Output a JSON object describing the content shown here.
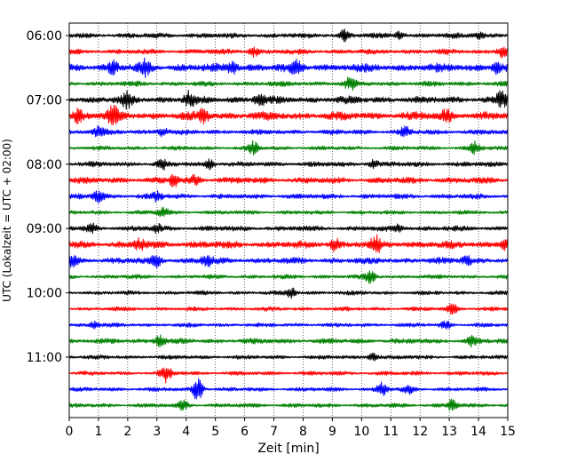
{
  "chart_data": {
    "type": "line",
    "title": "",
    "xlabel": "Zeit  [min]",
    "ylabel": "UTC (Lokalzeit = UTC + 02:00)",
    "xlim": [
      0,
      15
    ],
    "x_ticks": [
      0,
      1,
      2,
      3,
      4,
      5,
      6,
      7,
      8,
      9,
      10,
      11,
      12,
      13,
      14,
      15
    ],
    "x_grid": true,
    "grid_style": "dotted",
    "y_ticks": [
      {
        "label": "06:00",
        "trace": 0
      },
      {
        "label": "07:00",
        "trace": 4
      },
      {
        "label": "08:00",
        "trace": 8
      },
      {
        "label": "09:00",
        "trace": 12
      },
      {
        "label": "10:00",
        "trace": 16
      },
      {
        "label": "11:00",
        "trace": 20
      }
    ],
    "color_cycle": [
      "#000000",
      "#ff0000",
      "#0000ff",
      "#008000"
    ],
    "traces": [
      {
        "start": "06:00",
        "color": "#000000",
        "amplitude": 2.5,
        "events": [
          {
            "t": 9.4,
            "a": 5
          },
          {
            "t": 11.3,
            "a": 4
          },
          {
            "t": 14.0,
            "a": 4
          }
        ]
      },
      {
        "start": "06:15",
        "color": "#ff0000",
        "amplitude": 2.5,
        "events": [
          {
            "t": 6.3,
            "a": 5
          },
          {
            "t": 14.8,
            "a": 6
          }
        ]
      },
      {
        "start": "06:30",
        "color": "#0000ff",
        "amplitude": 4,
        "events": [
          {
            "t": 1.5,
            "a": 6
          },
          {
            "t": 2.6,
            "a": 7
          },
          {
            "t": 5.6,
            "a": 6
          },
          {
            "t": 7.8,
            "a": 6
          },
          {
            "t": 14.6,
            "a": 6
          }
        ]
      },
      {
        "start": "06:45",
        "color": "#008000",
        "amplitude": 2.5,
        "events": [
          {
            "t": 9.6,
            "a": 6
          }
        ]
      },
      {
        "start": "07:00",
        "color": "#000000",
        "amplitude": 3.5,
        "events": [
          {
            "t": 2.0,
            "a": 7
          },
          {
            "t": 4.1,
            "a": 8
          },
          {
            "t": 6.5,
            "a": 6
          },
          {
            "t": 14.8,
            "a": 8
          }
        ]
      },
      {
        "start": "07:15",
        "color": "#ff0000",
        "amplitude": 4,
        "events": [
          {
            "t": 0.3,
            "a": 6
          },
          {
            "t": 1.5,
            "a": 9
          },
          {
            "t": 4.6,
            "a": 8
          },
          {
            "t": 12.9,
            "a": 6
          }
        ]
      },
      {
        "start": "07:30",
        "color": "#0000ff",
        "amplitude": 2.5,
        "events": [
          {
            "t": 1.0,
            "a": 5
          },
          {
            "t": 3.2,
            "a": 5
          },
          {
            "t": 11.5,
            "a": 4
          }
        ]
      },
      {
        "start": "07:45",
        "color": "#008000",
        "amplitude": 2,
        "events": [
          {
            "t": 6.3,
            "a": 6
          },
          {
            "t": 13.9,
            "a": 6
          }
        ]
      },
      {
        "start": "08:00",
        "color": "#000000",
        "amplitude": 2.5,
        "events": [
          {
            "t": 3.2,
            "a": 4
          },
          {
            "t": 4.8,
            "a": 5
          },
          {
            "t": 10.4,
            "a": 4
          }
        ]
      },
      {
        "start": "08:15",
        "color": "#ff0000",
        "amplitude": 3,
        "events": [
          {
            "t": 3.6,
            "a": 6
          },
          {
            "t": 4.3,
            "a": 4
          }
        ]
      },
      {
        "start": "08:30",
        "color": "#0000ff",
        "amplitude": 2.5,
        "events": [
          {
            "t": 1.0,
            "a": 6
          },
          {
            "t": 3.0,
            "a": 4
          }
        ]
      },
      {
        "start": "08:45",
        "color": "#008000",
        "amplitude": 2,
        "events": [
          {
            "t": 3.2,
            "a": 6
          }
        ]
      },
      {
        "start": "09:00",
        "color": "#000000",
        "amplitude": 2.5,
        "events": [
          {
            "t": 0.8,
            "a": 4
          },
          {
            "t": 3.0,
            "a": 4
          },
          {
            "t": 11.3,
            "a": 4
          }
        ]
      },
      {
        "start": "09:15",
        "color": "#ff0000",
        "amplitude": 3.5,
        "events": [
          {
            "t": 2.4,
            "a": 5
          },
          {
            "t": 9.1,
            "a": 7
          },
          {
            "t": 10.5,
            "a": 8
          },
          {
            "t": 14.9,
            "a": 6
          }
        ]
      },
      {
        "start": "09:30",
        "color": "#0000ff",
        "amplitude": 3,
        "events": [
          {
            "t": 0.1,
            "a": 7
          },
          {
            "t": 3.0,
            "a": 6
          },
          {
            "t": 4.7,
            "a": 7
          },
          {
            "t": 13.6,
            "a": 5
          }
        ]
      },
      {
        "start": "09:45",
        "color": "#008000",
        "amplitude": 2,
        "events": [
          {
            "t": 10.3,
            "a": 6
          }
        ]
      },
      {
        "start": "10:00",
        "color": "#000000",
        "amplitude": 2,
        "events": [
          {
            "t": 7.6,
            "a": 5
          }
        ]
      },
      {
        "start": "10:15",
        "color": "#ff0000",
        "amplitude": 2,
        "events": [
          {
            "t": 13.1,
            "a": 5
          }
        ]
      },
      {
        "start": "10:30",
        "color": "#0000ff",
        "amplitude": 2,
        "events": [
          {
            "t": 0.9,
            "a": 4
          },
          {
            "t": 12.9,
            "a": 4
          }
        ]
      },
      {
        "start": "10:45",
        "color": "#008000",
        "amplitude": 2.5,
        "events": [
          {
            "t": 3.1,
            "a": 6
          },
          {
            "t": 13.8,
            "a": 5
          }
        ]
      },
      {
        "start": "11:00",
        "color": "#000000",
        "amplitude": 2,
        "events": [
          {
            "t": 10.4,
            "a": 4
          }
        ]
      },
      {
        "start": "11:15",
        "color": "#ff0000",
        "amplitude": 2,
        "events": [
          {
            "t": 3.3,
            "a": 9
          }
        ]
      },
      {
        "start": "11:30",
        "color": "#0000ff",
        "amplitude": 2,
        "events": [
          {
            "t": 4.4,
            "a": 13
          },
          {
            "t": 10.7,
            "a": 7
          },
          {
            "t": 11.6,
            "a": 5
          }
        ]
      },
      {
        "start": "11:45",
        "color": "#008000",
        "amplitude": 2,
        "events": [
          {
            "t": 3.9,
            "a": 5
          },
          {
            "t": 13.1,
            "a": 6
          }
        ]
      }
    ]
  }
}
